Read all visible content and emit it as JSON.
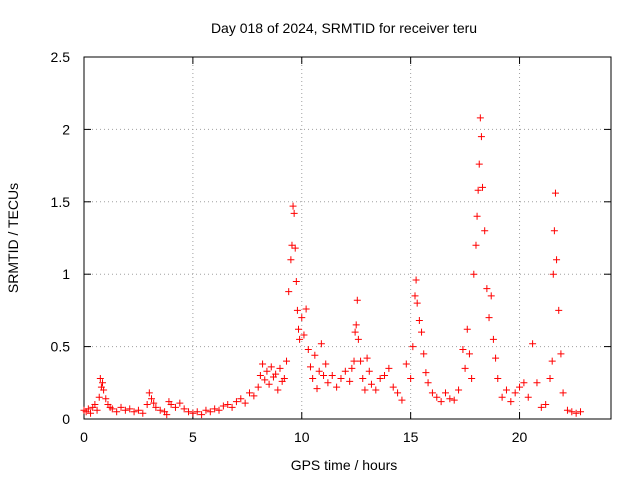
{
  "chart_data": {
    "type": "scatter",
    "title": "Day 018 of 2024, SRMTID for receiver teru",
    "xlabel": "GPS time / hours",
    "ylabel": "SRMTID / TECUs",
    "xlim": [
      0,
      24.2
    ],
    "ylim": [
      0,
      2.5
    ],
    "xticks": [
      0,
      5,
      10,
      15,
      20
    ],
    "xtick_labels": [
      "0",
      "5",
      "10",
      "15",
      "20"
    ],
    "yticks": [
      0,
      0.5,
      1,
      1.5,
      2,
      2.5
    ],
    "ytick_labels": [
      "0",
      "0.5",
      "1",
      "1.5",
      "2",
      "2.5"
    ],
    "grid": true,
    "marker": "+",
    "series": [
      {
        "name": "SRMTID",
        "color": "#ff0000",
        "points": [
          [
            0.0,
            0.06
          ],
          [
            0.1,
            0.05
          ],
          [
            0.2,
            0.07
          ],
          [
            0.3,
            0.04
          ],
          [
            0.4,
            0.08
          ],
          [
            0.5,
            0.1
          ],
          [
            0.6,
            0.06
          ],
          [
            0.7,
            0.15
          ],
          [
            0.75,
            0.28
          ],
          [
            0.8,
            0.22
          ],
          [
            0.85,
            0.25
          ],
          [
            0.9,
            0.2
          ],
          [
            1.0,
            0.14
          ],
          [
            1.1,
            0.1
          ],
          [
            1.2,
            0.08
          ],
          [
            1.3,
            0.07
          ],
          [
            1.5,
            0.05
          ],
          [
            1.7,
            0.08
          ],
          [
            1.9,
            0.06
          ],
          [
            2.1,
            0.07
          ],
          [
            2.3,
            0.05
          ],
          [
            2.5,
            0.06
          ],
          [
            2.7,
            0.04
          ],
          [
            2.9,
            0.1
          ],
          [
            3.0,
            0.18
          ],
          [
            3.1,
            0.14
          ],
          [
            3.2,
            0.11
          ],
          [
            3.3,
            0.08
          ],
          [
            3.5,
            0.06
          ],
          [
            3.7,
            0.05
          ],
          [
            3.8,
            0.03
          ],
          [
            3.9,
            0.12
          ],
          [
            4.0,
            0.1
          ],
          [
            4.2,
            0.08
          ],
          [
            4.4,
            0.11
          ],
          [
            4.6,
            0.07
          ],
          [
            4.8,
            0.05
          ],
          [
            5.0,
            0.04
          ],
          [
            5.2,
            0.05
          ],
          [
            5.4,
            0.03
          ],
          [
            5.6,
            0.06
          ],
          [
            5.8,
            0.05
          ],
          [
            6.0,
            0.07
          ],
          [
            6.2,
            0.06
          ],
          [
            6.4,
            0.09
          ],
          [
            6.6,
            0.1
          ],
          [
            6.8,
            0.08
          ],
          [
            7.0,
            0.12
          ],
          [
            7.2,
            0.14
          ],
          [
            7.4,
            0.11
          ],
          [
            7.6,
            0.18
          ],
          [
            7.8,
            0.16
          ],
          [
            8.0,
            0.22
          ],
          [
            8.1,
            0.3
          ],
          [
            8.2,
            0.38
          ],
          [
            8.3,
            0.27
          ],
          [
            8.4,
            0.33
          ],
          [
            8.5,
            0.24
          ],
          [
            8.6,
            0.36
          ],
          [
            8.7,
            0.29
          ],
          [
            8.8,
            0.31
          ],
          [
            8.9,
            0.2
          ],
          [
            9.0,
            0.35
          ],
          [
            9.1,
            0.26
          ],
          [
            9.2,
            0.28
          ],
          [
            9.3,
            0.4
          ],
          [
            9.4,
            0.88
          ],
          [
            9.5,
            1.1
          ],
          [
            9.55,
            1.2
          ],
          [
            9.6,
            1.47
          ],
          [
            9.65,
            1.42
          ],
          [
            9.7,
            1.18
          ],
          [
            9.75,
            0.95
          ],
          [
            9.8,
            0.75
          ],
          [
            9.85,
            0.62
          ],
          [
            9.9,
            0.55
          ],
          [
            10.0,
            0.7
          ],
          [
            10.1,
            0.58
          ],
          [
            10.2,
            0.76
          ],
          [
            10.3,
            0.48
          ],
          [
            10.4,
            0.36
          ],
          [
            10.5,
            0.28
          ],
          [
            10.6,
            0.44
          ],
          [
            10.7,
            0.21
          ],
          [
            10.8,
            0.33
          ],
          [
            10.9,
            0.52
          ],
          [
            11.0,
            0.3
          ],
          [
            11.1,
            0.38
          ],
          [
            11.2,
            0.25
          ],
          [
            11.4,
            0.3
          ],
          [
            11.6,
            0.22
          ],
          [
            11.8,
            0.28
          ],
          [
            12.0,
            0.33
          ],
          [
            12.2,
            0.26
          ],
          [
            12.3,
            0.35
          ],
          [
            12.4,
            0.4
          ],
          [
            12.45,
            0.6
          ],
          [
            12.5,
            0.65
          ],
          [
            12.55,
            0.82
          ],
          [
            12.6,
            0.55
          ],
          [
            12.7,
            0.4
          ],
          [
            12.8,
            0.28
          ],
          [
            12.9,
            0.2
          ],
          [
            13.0,
            0.42
          ],
          [
            13.1,
            0.33
          ],
          [
            13.2,
            0.24
          ],
          [
            13.4,
            0.2
          ],
          [
            13.6,
            0.28
          ],
          [
            13.8,
            0.3
          ],
          [
            14.0,
            0.35
          ],
          [
            14.2,
            0.22
          ],
          [
            14.4,
            0.18
          ],
          [
            14.6,
            0.13
          ],
          [
            14.8,
            0.38
          ],
          [
            15.0,
            0.28
          ],
          [
            15.1,
            0.5
          ],
          [
            15.2,
            0.85
          ],
          [
            15.25,
            0.96
          ],
          [
            15.3,
            0.8
          ],
          [
            15.4,
            0.68
          ],
          [
            15.5,
            0.6
          ],
          [
            15.6,
            0.45
          ],
          [
            15.7,
            0.32
          ],
          [
            15.8,
            0.25
          ],
          [
            16.0,
            0.18
          ],
          [
            16.2,
            0.15
          ],
          [
            16.4,
            0.12
          ],
          [
            16.6,
            0.18
          ],
          [
            16.8,
            0.14
          ],
          [
            17.0,
            0.13
          ],
          [
            17.2,
            0.2
          ],
          [
            17.4,
            0.48
          ],
          [
            17.5,
            0.35
          ],
          [
            17.6,
            0.62
          ],
          [
            17.7,
            0.45
          ],
          [
            17.8,
            0.28
          ],
          [
            17.9,
            1.0
          ],
          [
            18.0,
            1.2
          ],
          [
            18.05,
            1.4
          ],
          [
            18.1,
            1.58
          ],
          [
            18.15,
            1.76
          ],
          [
            18.2,
            2.08
          ],
          [
            18.25,
            1.95
          ],
          [
            18.3,
            1.6
          ],
          [
            18.4,
            1.3
          ],
          [
            18.5,
            0.9
          ],
          [
            18.6,
            0.7
          ],
          [
            18.7,
            0.85
          ],
          [
            18.8,
            0.55
          ],
          [
            18.9,
            0.42
          ],
          [
            19.0,
            0.28
          ],
          [
            19.2,
            0.15
          ],
          [
            19.4,
            0.2
          ],
          [
            19.6,
            0.12
          ],
          [
            19.8,
            0.18
          ],
          [
            20.0,
            0.22
          ],
          [
            20.2,
            0.25
          ],
          [
            20.4,
            0.15
          ],
          [
            20.6,
            0.52
          ],
          [
            20.8,
            0.25
          ],
          [
            21.0,
            0.08
          ],
          [
            21.2,
            0.1
          ],
          [
            21.4,
            0.28
          ],
          [
            21.5,
            0.4
          ],
          [
            21.55,
            1.0
          ],
          [
            21.6,
            1.3
          ],
          [
            21.65,
            1.56
          ],
          [
            21.7,
            1.1
          ],
          [
            21.8,
            0.75
          ],
          [
            21.9,
            0.45
          ],
          [
            22.0,
            0.18
          ],
          [
            22.2,
            0.06
          ],
          [
            22.4,
            0.05
          ],
          [
            22.6,
            0.04
          ],
          [
            22.8,
            0.05
          ]
        ]
      }
    ]
  }
}
